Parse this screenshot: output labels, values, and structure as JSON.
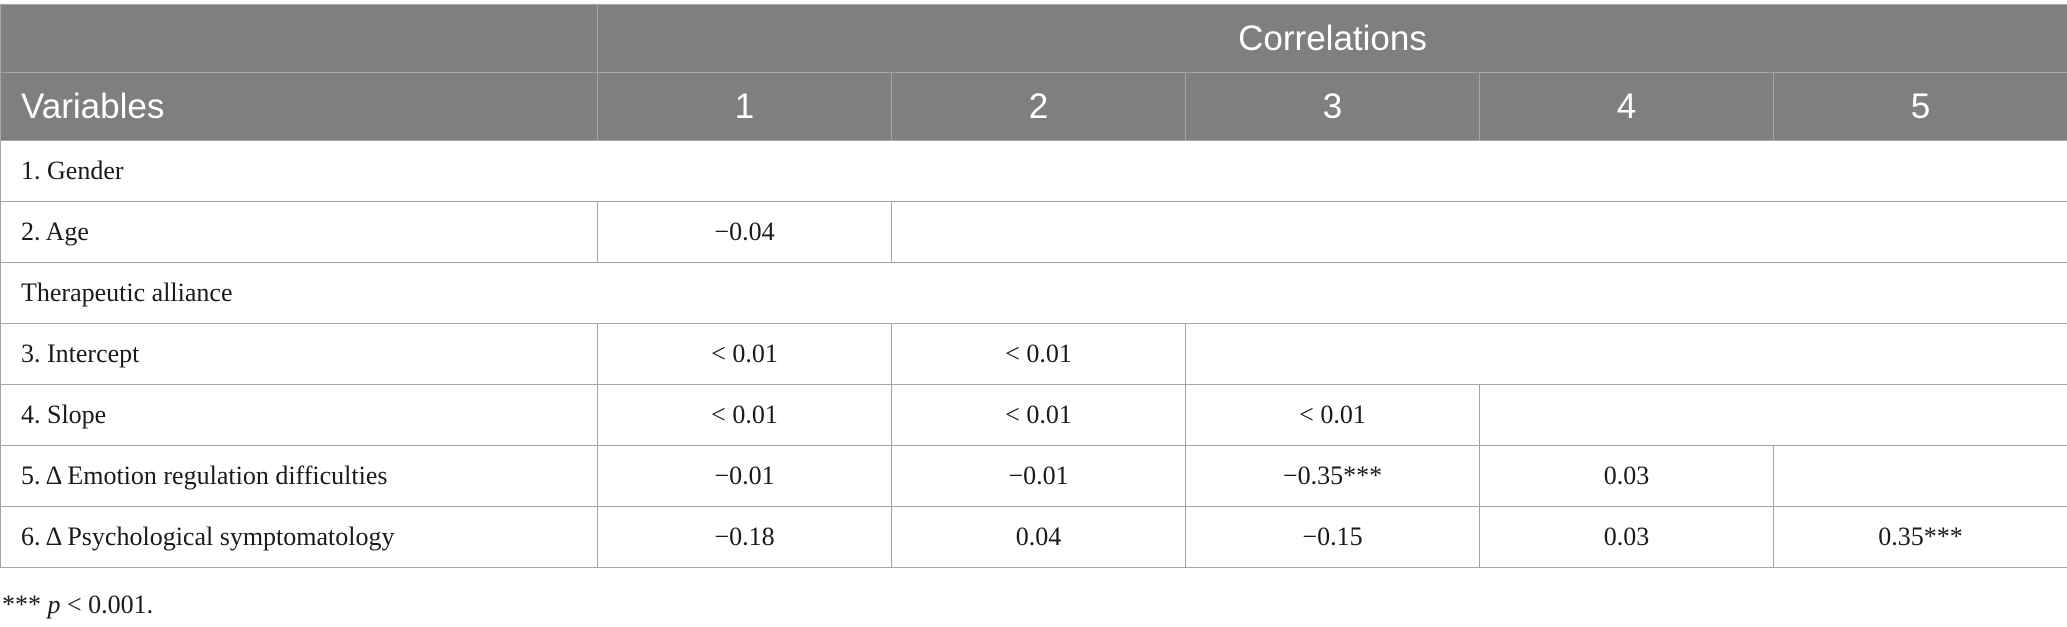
{
  "header": {
    "group_title": "Correlations",
    "variables_label": "Variables",
    "columns": [
      "1",
      "2",
      "3",
      "4",
      "5"
    ]
  },
  "rows": [
    {
      "label": "1. Gender",
      "cells": []
    },
    {
      "label": "2. Age",
      "cells": [
        "−0.04"
      ]
    },
    {
      "label": "Therapeutic alliance",
      "cells": []
    },
    {
      "label": "3. Intercept",
      "cells": [
        "< 0.01",
        "< 0.01"
      ]
    },
    {
      "label": "4. Slope",
      "cells": [
        "< 0.01",
        "< 0.01",
        "< 0.01"
      ]
    },
    {
      "label": "5. Δ Emotion regulation difficulties",
      "cells": [
        "−0.01",
        "−0.01",
        "−0.35***",
        "0.03"
      ]
    },
    {
      "label": "6. Δ Psychological symptomatology",
      "cells": [
        "−0.18",
        "0.04",
        "−0.15",
        "0.03",
        "0.35***"
      ]
    }
  ],
  "footnote": {
    "stars": "***",
    "p_symbol": "p",
    "threshold": "< 0.001."
  }
}
